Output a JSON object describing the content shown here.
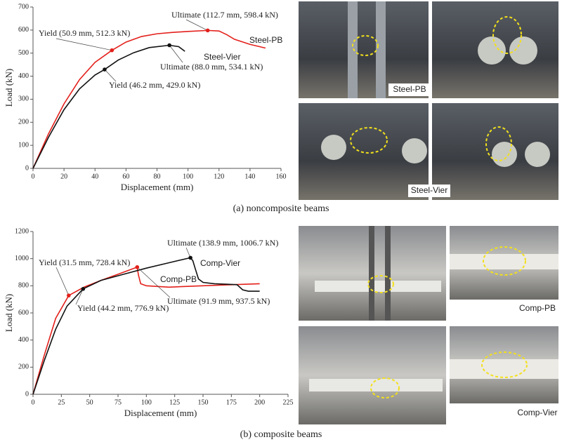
{
  "chart_data": [
    {
      "type": "line",
      "caption": "(a) noncomposite beams",
      "xlabel": "Displacement (mm)",
      "ylabel": "Load (kN)",
      "xlim": [
        0,
        160
      ],
      "xticks": [
        0,
        20,
        40,
        60,
        80,
        100,
        120,
        140,
        160
      ],
      "ylim": [
        0,
        700
      ],
      "yticks": [
        0,
        100,
        200,
        300,
        400,
        500,
        600,
        700
      ],
      "series": [
        {
          "name": "Steel-PB",
          "color": "#e3201b",
          "x": [
            0,
            10,
            20,
            30,
            40,
            50.9,
            60,
            70,
            80,
            90,
            100,
            112.7,
            120,
            125,
            130,
            140,
            150
          ],
          "values": [
            0,
            150,
            280,
            385,
            460,
            512.3,
            548,
            572,
            584,
            590,
            594,
            598.4,
            596,
            580,
            560,
            538,
            522
          ]
        },
        {
          "name": "Steel-Vier",
          "color": "#111111",
          "x": [
            0,
            10,
            20,
            30,
            40,
            46.2,
            55,
            65,
            75,
            88,
            94,
            98
          ],
          "values": [
            0,
            135,
            255,
            345,
            405,
            429,
            470,
            502,
            524,
            534.1,
            528,
            508
          ]
        }
      ],
      "annotations": [
        {
          "text": "Yield (50.9 mm, 512.3 kN)",
          "x": 50.9,
          "y": 512.3,
          "color": "#e3201b"
        },
        {
          "text": "Ultimate (112.7 mm, 598.4 kN)",
          "x": 112.7,
          "y": 598.4,
          "color": "#e3201b"
        },
        {
          "text": "Yield (46.2 mm, 429.0 kN)",
          "x": 46.2,
          "y": 429.0,
          "color": "#111111"
        },
        {
          "text": "Ultimate (88.0 mm, 534.1 kN)",
          "x": 88.0,
          "y": 534.1,
          "color": "#111111"
        }
      ],
      "photo_labels": [
        "Steel-PB",
        "Steel-Vier"
      ]
    },
    {
      "type": "line",
      "caption": "(b) composite beams",
      "xlabel": "Displacement (mm)",
      "ylabel": "Load (kN)",
      "xlim": [
        0,
        225
      ],
      "xticks": [
        0,
        25,
        50,
        75,
        100,
        125,
        150,
        175,
        200,
        225
      ],
      "ylim": [
        0,
        1200
      ],
      "yticks": [
        0,
        200,
        400,
        600,
        800,
        1000,
        1200
      ],
      "series": [
        {
          "name": "Comp-PB",
          "color": "#e3201b",
          "x": [
            0,
            10,
            20,
            31.5,
            45,
            60,
            75,
            91.9,
            93,
            95,
            100,
            120,
            150,
            175,
            200
          ],
          "values": [
            0,
            290,
            560,
            728.4,
            790,
            840,
            885,
            937.5,
            880,
            815,
            800,
            790,
            800,
            808,
            815
          ]
        },
        {
          "name": "Comp-Vier",
          "color": "#111111",
          "x": [
            0,
            10,
            20,
            30,
            44.2,
            60,
            80,
            100,
            120,
            138.9,
            141,
            143,
            146,
            150,
            160,
            170,
            180,
            185,
            190,
            200
          ],
          "values": [
            0,
            250,
            480,
            650,
            776.9,
            840,
            885,
            930,
            970,
            1006.7,
            985,
            930,
            850,
            825,
            815,
            812,
            808,
            770,
            760,
            760
          ]
        }
      ],
      "annotations": [
        {
          "text": "Yield (31.5 mm, 728.4 kN)",
          "x": 31.5,
          "y": 728.4,
          "color": "#e3201b"
        },
        {
          "text": "Yield (44.2 mm, 776.9 kN)",
          "x": 44.2,
          "y": 776.9,
          "color": "#111111"
        },
        {
          "text": "Ultimate (138.9 mm, 1006.7 kN)",
          "x": 138.9,
          "y": 1006.7,
          "color": "#111111"
        },
        {
          "text": "Ultimate (91.9 mm, 937.5 kN)",
          "x": 91.9,
          "y": 937.5,
          "color": "#e3201b"
        }
      ],
      "photo_labels": [
        "Comp-PB",
        "Comp-Vier"
      ]
    }
  ]
}
